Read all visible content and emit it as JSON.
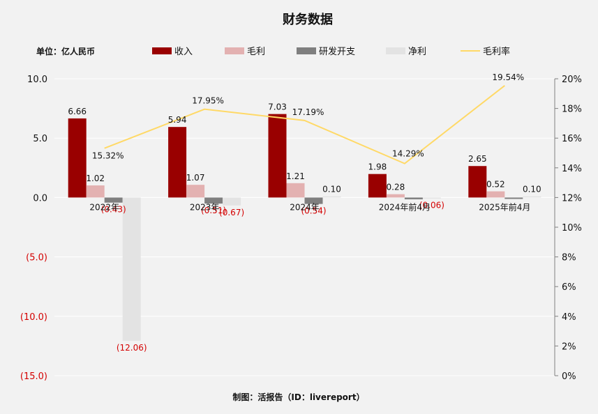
{
  "title": "财务数据",
  "unit_label": "单位：亿人民币",
  "footer": "制图：活报告（ID：livereport）",
  "colors": {
    "revenue": "#990000",
    "gross": "#e3b1b1",
    "rd": "#7f7f7f",
    "net": "#e3e3e3",
    "margin": "#ffd966",
    "negative_text": "#d40000"
  },
  "chart_data": {
    "type": "bar",
    "categories": [
      "2022年",
      "2023年",
      "2024年",
      "2024年前4月",
      "2025年前4月"
    ],
    "series": [
      {
        "name": "收入",
        "values": [
          6.66,
          5.94,
          7.03,
          1.98,
          2.65
        ],
        "labels": [
          "6.66",
          "5.94",
          "7.03",
          "1.98",
          "2.65"
        ]
      },
      {
        "name": "毛利",
        "values": [
          1.02,
          1.07,
          1.21,
          0.28,
          0.52
        ],
        "labels": [
          "1.02",
          "1.07",
          "1.21",
          "0.28",
          "0.52"
        ]
      },
      {
        "name": "研发开支",
        "values": [
          -0.43,
          -0.51,
          -0.54,
          -0.15,
          -0.12
        ],
        "labels": [
          "(0.43)",
          "(0.51)",
          "(0.54)",
          "",
          ""
        ]
      },
      {
        "name": "净利",
        "values": [
          -12.06,
          -0.67,
          0.1,
          -0.06,
          0.1
        ],
        "labels": [
          "(12.06)",
          "(0.67)",
          "0.10",
          "(0.06)",
          "0.10"
        ]
      }
    ],
    "line_series": {
      "name": "毛利率",
      "values": [
        15.32,
        17.95,
        17.19,
        14.29,
        19.54
      ],
      "labels": [
        "15.32%",
        "17.95%",
        "17.19%",
        "14.29%",
        "19.54%"
      ]
    },
    "y_left": {
      "ylim": [
        -15,
        10
      ],
      "ticks": [
        "10.0",
        "5.0",
        "0.0",
        "(5.0)",
        "(10.0)",
        "(15.0)"
      ]
    },
    "y_right": {
      "ylim": [
        0,
        20
      ],
      "ticks": [
        "20%",
        "18%",
        "16%",
        "14%",
        "12%",
        "10%",
        "8%",
        "6%",
        "4%",
        "2%",
        "0%"
      ]
    },
    "legend_position": "top",
    "grid": true
  }
}
